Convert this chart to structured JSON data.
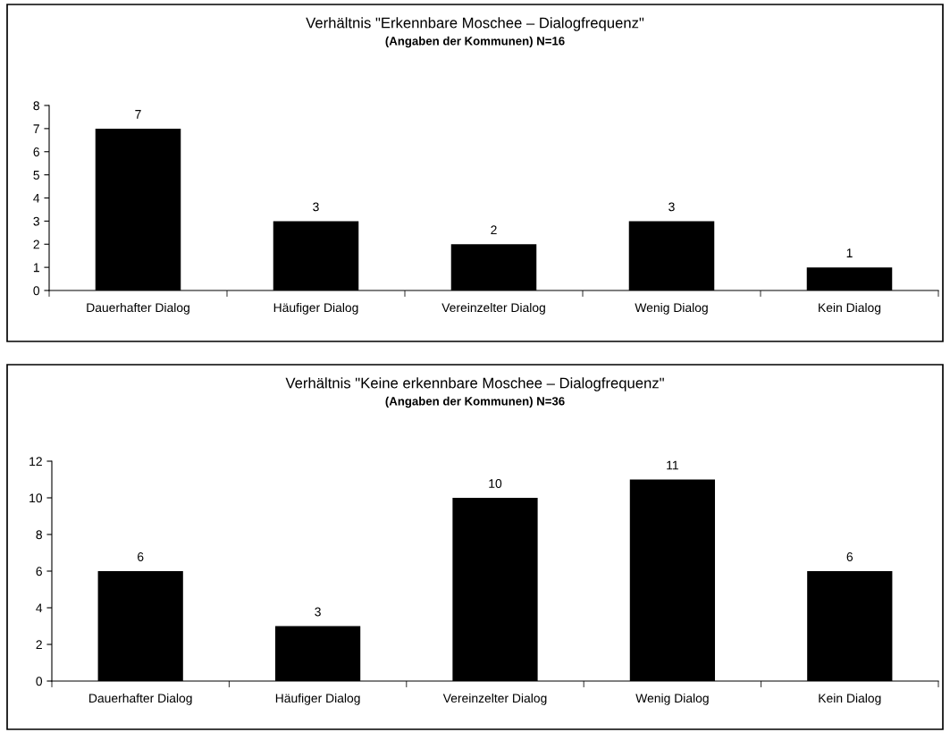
{
  "chart_data": [
    {
      "type": "bar",
      "title": "Verhältnis \"Erkennbare Moschee – Dialogfrequenz\"",
      "subtitle": "(Angaben der Kommunen) N=16",
      "categories": [
        "Dauerhafter Dialog",
        "Häufiger Dialog",
        "Vereinzelter Dialog",
        "Wenig Dialog",
        "Kein Dialog"
      ],
      "values": [
        7,
        3,
        2,
        3,
        1
      ],
      "color": "#000000",
      "ylim": [
        0,
        8
      ],
      "yticks": [
        0,
        1,
        2,
        3,
        4,
        5,
        6,
        7,
        8
      ],
      "grid": false,
      "legend": false,
      "data_labels": true
    },
    {
      "type": "bar",
      "title": "Verhältnis \"Keine erkennbare Moschee – Dialogfrequenz\"",
      "subtitle": "(Angaben der Kommunen) N=36",
      "categories": [
        "Dauerhafter Dialog",
        "Häufiger Dialog",
        "Vereinzelter Dialog",
        "Wenig Dialog",
        "Kein Dialog"
      ],
      "values": [
        6,
        3,
        10,
        11,
        6
      ],
      "color": "#000000",
      "ylim": [
        0,
        12
      ],
      "yticks": [
        0,
        2,
        4,
        6,
        8,
        10,
        12
      ],
      "grid": false,
      "legend": false,
      "data_labels": true
    }
  ]
}
